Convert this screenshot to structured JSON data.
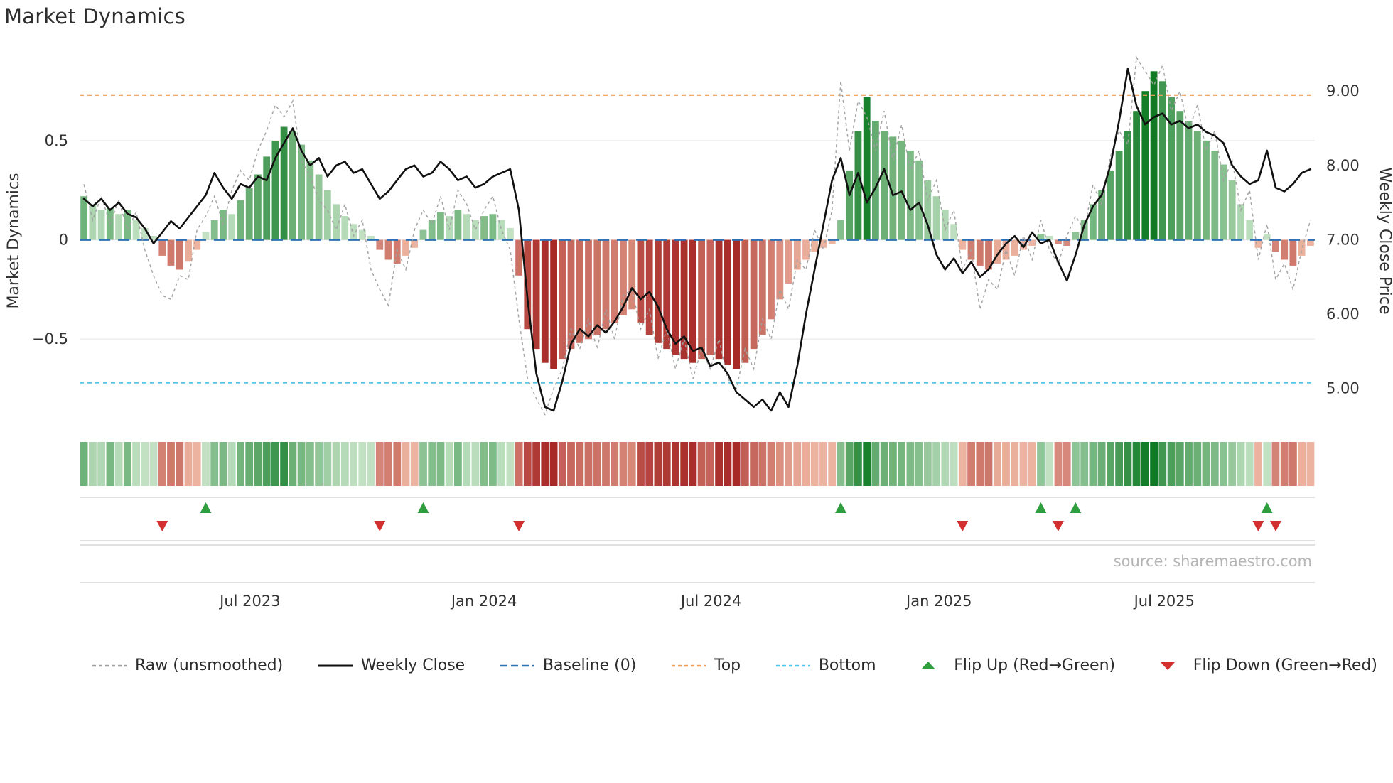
{
  "page": {
    "source": "source: sharemaestro.com"
  },
  "colors": {
    "bar_green_light": "#cfe9cf",
    "bar_green_dark": "#0f7a23",
    "bar_red_light": "#f2c0aa",
    "bar_red_dark": "#9e1616",
    "raw_line": "#a0a0a0",
    "close_line": "#111111",
    "baseline": "#2d72b5",
    "top_line": "#f0a05c",
    "bottom_line": "#52c5e8",
    "flip_up": "#2e9e3e",
    "flip_down": "#d32f2f",
    "grid": "#e8e8e8",
    "panel_border": "#cfcfcf",
    "text": "#333333",
    "source_text": "#b5b5b5",
    "background": "#ffffff"
  },
  "chart_data": {
    "type": "bar",
    "title": "Market Dynamics",
    "left_axis": {
      "label": "Market Dynamics",
      "range": [
        -0.94,
        0.93
      ],
      "ticks": [
        {
          "v": 0.5,
          "label": "0.5"
        },
        {
          "v": 0,
          "label": "0"
        },
        {
          "v": -0.5,
          "label": "−0.5"
        }
      ]
    },
    "right_axis": {
      "label": "Weekly Close Price",
      "range": [
        4.49,
        9.48
      ],
      "ticks": [
        {
          "v": 9,
          "label": "9.00"
        },
        {
          "v": 8,
          "label": "8.00"
        },
        {
          "v": 7,
          "label": "7.00"
        },
        {
          "v": 6,
          "label": "6.00"
        },
        {
          "v": 5,
          "label": "5.00"
        }
      ]
    },
    "x_ticks": [
      {
        "week": 19.1,
        "label": "Jul 2023"
      },
      {
        "week": 46.0,
        "label": "Jan 2024"
      },
      {
        "week": 72.1,
        "label": "Jul 2024"
      },
      {
        "week": 98.3,
        "label": "Jan 2025"
      },
      {
        "week": 124.2,
        "label": "Jul 2025"
      }
    ],
    "reference_lines": {
      "baseline": 0,
      "top": 0.73,
      "bottom": -0.72
    },
    "oscillator": [
      0.22,
      0.18,
      0.15,
      0.16,
      0.13,
      0.15,
      0.1,
      0.06,
      0.02,
      -0.08,
      -0.13,
      -0.15,
      -0.11,
      -0.05,
      0.04,
      0.1,
      0.15,
      0.13,
      0.2,
      0.26,
      0.33,
      0.42,
      0.5,
      0.57,
      0.55,
      0.48,
      0.4,
      0.33,
      0.25,
      0.18,
      0.12,
      0.08,
      0.05,
      0.02,
      -0.05,
      -0.1,
      -0.12,
      -0.08,
      -0.04,
      0.05,
      0.1,
      0.14,
      0.12,
      0.15,
      0.13,
      0.1,
      0.12,
      0.13,
      0.1,
      0.06,
      -0.18,
      -0.45,
      -0.55,
      -0.62,
      -0.65,
      -0.6,
      -0.55,
      -0.52,
      -0.5,
      -0.48,
      -0.45,
      -0.42,
      -0.38,
      -0.35,
      -0.42,
      -0.48,
      -0.52,
      -0.55,
      -0.58,
      -0.6,
      -0.62,
      -0.6,
      -0.58,
      -0.6,
      -0.63,
      -0.65,
      -0.62,
      -0.55,
      -0.48,
      -0.4,
      -0.3,
      -0.22,
      -0.15,
      -0.1,
      -0.06,
      -0.04,
      -0.02,
      0.1,
      0.35,
      0.55,
      0.72,
      0.6,
      0.55,
      0.52,
      0.5,
      0.45,
      0.4,
      0.3,
      0.22,
      0.15,
      0.08,
      -0.05,
      -0.1,
      -0.13,
      -0.15,
      -0.12,
      -0.1,
      -0.08,
      -0.05,
      -0.03,
      0.03,
      0.02,
      -0.02,
      -0.03,
      0.04,
      0.1,
      0.18,
      0.25,
      0.35,
      0.45,
      0.55,
      0.65,
      0.75,
      0.85,
      0.8,
      0.72,
      0.65,
      0.6,
      0.55,
      0.5,
      0.45,
      0.38,
      0.3,
      0.18,
      0.1,
      -0.04,
      0.03,
      -0.06,
      -0.1,
      -0.13,
      -0.08,
      -0.03
    ],
    "raw": [
      0.28,
      0.1,
      0.22,
      0.08,
      0.2,
      0.05,
      0.14,
      -0.05,
      -0.18,
      -0.28,
      -0.3,
      -0.18,
      -0.2,
      0.05,
      0.12,
      0.22,
      0.08,
      0.25,
      0.35,
      0.3,
      0.45,
      0.55,
      0.68,
      0.62,
      0.7,
      0.4,
      0.32,
      0.2,
      0.15,
      0.05,
      0.18,
      0.02,
      0.1,
      -0.15,
      -0.25,
      -0.33,
      -0.05,
      -0.15,
      0.05,
      0.15,
      0.08,
      0.22,
      0.05,
      0.25,
      0.18,
      0.05,
      0.15,
      0.22,
      0.05,
      -0.05,
      -0.4,
      -0.7,
      -0.8,
      -0.88,
      -0.75,
      -0.65,
      -0.45,
      -0.55,
      -0.4,
      -0.55,
      -0.35,
      -0.5,
      -0.28,
      -0.25,
      -0.45,
      -0.35,
      -0.6,
      -0.45,
      -0.65,
      -0.5,
      -0.7,
      -0.55,
      -0.65,
      -0.5,
      -0.7,
      -0.75,
      -0.55,
      -0.65,
      -0.4,
      -0.5,
      -0.25,
      -0.35,
      -0.1,
      -0.15,
      0.05,
      -0.05,
      0.15,
      0.8,
      0.45,
      0.7,
      0.62,
      0.45,
      0.65,
      0.4,
      0.58,
      0.35,
      0.45,
      0.2,
      0.3,
      0.05,
      0.15,
      -0.15,
      -0.05,
      -0.35,
      -0.2,
      -0.25,
      -0.05,
      -0.18,
      0.02,
      -0.1,
      0.1,
      -0.05,
      -0.12,
      0.02,
      0.12,
      0.05,
      0.28,
      0.18,
      0.42,
      0.55,
      0.48,
      0.92,
      0.85,
      0.78,
      0.88,
      0.65,
      0.75,
      0.55,
      0.68,
      0.45,
      0.55,
      0.3,
      0.4,
      0.15,
      0.25,
      -0.1,
      0.08,
      -0.2,
      -0.12,
      -0.25,
      -0.05,
      0.1
    ],
    "close": [
      7.55,
      7.45,
      7.55,
      7.4,
      7.5,
      7.35,
      7.3,
      7.15,
      6.95,
      7.1,
      7.25,
      7.15,
      7.3,
      7.45,
      7.6,
      7.9,
      7.7,
      7.55,
      7.75,
      7.7,
      7.85,
      7.8,
      8.1,
      8.3,
      8.5,
      8.2,
      8.0,
      8.1,
      7.85,
      8.0,
      8.05,
      7.9,
      7.95,
      7.75,
      7.55,
      7.65,
      7.8,
      7.95,
      8.0,
      7.85,
      7.9,
      8.05,
      7.95,
      7.8,
      7.85,
      7.7,
      7.75,
      7.85,
      7.9,
      7.95,
      7.4,
      6.2,
      5.2,
      4.75,
      4.7,
      5.1,
      5.6,
      5.8,
      5.7,
      5.85,
      5.75,
      5.9,
      6.1,
      6.35,
      6.2,
      6.3,
      6.1,
      5.8,
      5.6,
      5.7,
      5.5,
      5.55,
      5.3,
      5.35,
      5.2,
      4.95,
      4.85,
      4.75,
      4.85,
      4.7,
      4.95,
      4.75,
      5.3,
      6.0,
      6.6,
      7.2,
      7.8,
      8.1,
      7.6,
      7.9,
      7.5,
      7.7,
      7.95,
      7.6,
      7.65,
      7.4,
      7.5,
      7.2,
      6.8,
      6.6,
      6.75,
      6.55,
      6.7,
      6.5,
      6.6,
      6.8,
      6.95,
      7.05,
      6.9,
      7.1,
      6.95,
      7.0,
      6.7,
      6.45,
      6.8,
      7.2,
      7.45,
      7.6,
      8.0,
      8.6,
      9.3,
      8.8,
      8.55,
      8.65,
      8.7,
      8.55,
      8.6,
      8.5,
      8.55,
      8.45,
      8.4,
      8.3,
      8.0,
      7.85,
      7.75,
      7.8,
      8.2,
      7.7,
      7.65,
      7.75,
      7.9,
      7.95
    ],
    "flip_up_weeks": [
      14,
      39,
      87,
      110,
      114,
      136
    ],
    "flip_down_weeks": [
      9,
      34,
      50,
      101,
      112,
      135,
      137
    ],
    "legend": [
      {
        "name": "raw",
        "label": "Raw (unsmoothed)",
        "swatch": "dashed",
        "color": "#a0a0a0"
      },
      {
        "name": "weekly-close",
        "label": "Weekly Close",
        "swatch": "solid",
        "color": "#111111"
      },
      {
        "name": "baseline",
        "label": "Baseline (0)",
        "swatch": "longdash",
        "color": "#2d72b5"
      },
      {
        "name": "top",
        "label": "Top",
        "swatch": "dashed",
        "color": "#f0a05c"
      },
      {
        "name": "bottom",
        "label": "Bottom",
        "swatch": "dashed",
        "color": "#52c5e8"
      },
      {
        "name": "flip-up",
        "label": "Flip Up (Red→Green)",
        "swatch": "triangle-up",
        "color": "#2e9e3e"
      },
      {
        "name": "flip-down",
        "label": "Flip Down (Green→Red)",
        "swatch": "triangle-down",
        "color": "#d32f2f"
      }
    ]
  }
}
